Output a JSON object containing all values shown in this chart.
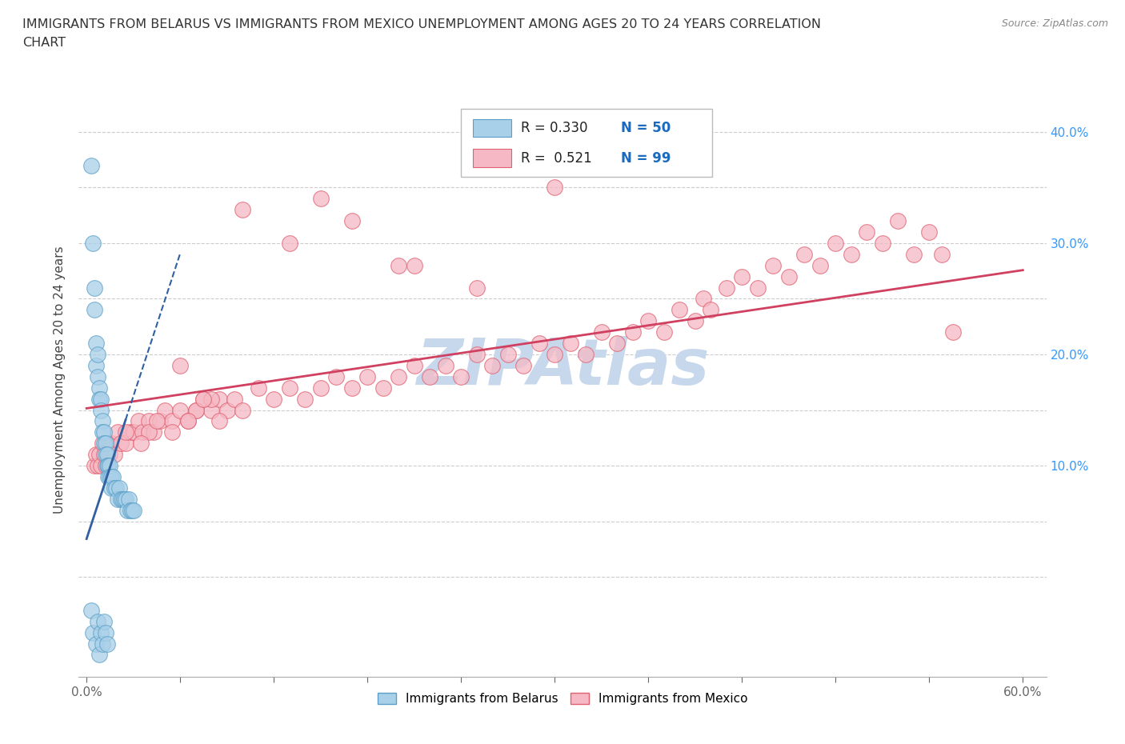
{
  "title_line1": "IMMIGRANTS FROM BELARUS VS IMMIGRANTS FROM MEXICO UNEMPLOYMENT AMONG AGES 20 TO 24 YEARS CORRELATION",
  "title_line2": "CHART",
  "source": "Source: ZipAtlas.com",
  "ylabel": "Unemployment Among Ages 20 to 24 years",
  "xlim": [
    -0.005,
    0.615
  ],
  "ylim": [
    -0.09,
    0.445
  ],
  "x_tick_positions": [
    0.0,
    0.06,
    0.12,
    0.18,
    0.24,
    0.3,
    0.36,
    0.42,
    0.48,
    0.54,
    0.6
  ],
  "x_tick_labels": [
    "0.0%",
    "",
    "",
    "",
    "",
    "",
    "",
    "",
    "",
    "",
    "60.0%"
  ],
  "y_tick_positions": [
    0.0,
    0.05,
    0.1,
    0.15,
    0.2,
    0.25,
    0.3,
    0.35,
    0.4
  ],
  "y_tick_labels_right": [
    "",
    "",
    "10.0%",
    "",
    "20.0%",
    "",
    "30.0%",
    "",
    "40.0%"
  ],
  "belarus_color": "#a8d0e8",
  "mexico_color": "#f5b8c4",
  "belarus_edge_color": "#5b9fc8",
  "mexico_edge_color": "#e06070",
  "belarus_trend_color": "#3060a0",
  "mexico_trend_color": "#d04060",
  "grid_color": "#cccccc",
  "belarus_R": 0.33,
  "belarus_N": 50,
  "mexico_R": 0.521,
  "mexico_N": 99,
  "watermark": "ZIPAtlas",
  "watermark_color": "#c8d8ec",
  "background_color": "#ffffff",
  "legend_R_color": "#1a6bbf",
  "legend_N_color": "#1a6bbf",
  "belarus_x": [
    0.003,
    0.004,
    0.005,
    0.005,
    0.006,
    0.006,
    0.007,
    0.007,
    0.008,
    0.008,
    0.009,
    0.009,
    0.01,
    0.01,
    0.011,
    0.011,
    0.012,
    0.012,
    0.013,
    0.013,
    0.014,
    0.014,
    0.015,
    0.015,
    0.016,
    0.016,
    0.017,
    0.018,
    0.019,
    0.02,
    0.021,
    0.022,
    0.023,
    0.024,
    0.025,
    0.026,
    0.027,
    0.028,
    0.029,
    0.03,
    0.003,
    0.004,
    0.006,
    0.007,
    0.008,
    0.009,
    0.01,
    0.011,
    0.012,
    0.013
  ],
  "belarus_y": [
    0.37,
    0.3,
    0.26,
    0.24,
    0.21,
    0.19,
    0.2,
    0.18,
    0.17,
    0.16,
    0.16,
    0.15,
    0.14,
    0.13,
    0.13,
    0.12,
    0.12,
    0.11,
    0.11,
    0.1,
    0.1,
    0.09,
    0.1,
    0.09,
    0.09,
    0.08,
    0.09,
    0.08,
    0.08,
    0.07,
    0.08,
    0.07,
    0.07,
    0.07,
    0.07,
    0.06,
    0.07,
    0.06,
    0.06,
    0.06,
    -0.03,
    -0.05,
    -0.06,
    -0.04,
    -0.07,
    -0.05,
    -0.06,
    -0.04,
    -0.05,
    -0.06
  ],
  "mexico_x": [
    0.005,
    0.006,
    0.007,
    0.008,
    0.009,
    0.01,
    0.011,
    0.012,
    0.013,
    0.015,
    0.016,
    0.018,
    0.02,
    0.022,
    0.025,
    0.028,
    0.03,
    0.033,
    0.036,
    0.04,
    0.043,
    0.047,
    0.05,
    0.055,
    0.06,
    0.065,
    0.07,
    0.075,
    0.08,
    0.085,
    0.09,
    0.095,
    0.1,
    0.11,
    0.12,
    0.13,
    0.14,
    0.15,
    0.16,
    0.17,
    0.18,
    0.19,
    0.2,
    0.21,
    0.22,
    0.23,
    0.24,
    0.25,
    0.26,
    0.27,
    0.28,
    0.29,
    0.3,
    0.31,
    0.32,
    0.33,
    0.34,
    0.35,
    0.36,
    0.37,
    0.38,
    0.39,
    0.395,
    0.4,
    0.41,
    0.42,
    0.43,
    0.44,
    0.45,
    0.46,
    0.47,
    0.48,
    0.49,
    0.5,
    0.51,
    0.52,
    0.53,
    0.54,
    0.548,
    0.555,
    0.1,
    0.15,
    0.2,
    0.25,
    0.3,
    0.13,
    0.17,
    0.21,
    0.06,
    0.08,
    0.04,
    0.045,
    0.035,
    0.025,
    0.07,
    0.055,
    0.065,
    0.075,
    0.085
  ],
  "mexico_y": [
    0.1,
    0.11,
    0.1,
    0.11,
    0.1,
    0.12,
    0.11,
    0.1,
    0.12,
    0.11,
    0.12,
    0.11,
    0.13,
    0.12,
    0.12,
    0.13,
    0.13,
    0.14,
    0.13,
    0.14,
    0.13,
    0.14,
    0.15,
    0.14,
    0.15,
    0.14,
    0.15,
    0.16,
    0.15,
    0.16,
    0.15,
    0.16,
    0.15,
    0.17,
    0.16,
    0.17,
    0.16,
    0.17,
    0.18,
    0.17,
    0.18,
    0.17,
    0.18,
    0.19,
    0.18,
    0.19,
    0.18,
    0.2,
    0.19,
    0.2,
    0.19,
    0.21,
    0.2,
    0.21,
    0.2,
    0.22,
    0.21,
    0.22,
    0.23,
    0.22,
    0.24,
    0.23,
    0.25,
    0.24,
    0.26,
    0.27,
    0.26,
    0.28,
    0.27,
    0.29,
    0.28,
    0.3,
    0.29,
    0.31,
    0.3,
    0.32,
    0.29,
    0.31,
    0.29,
    0.22,
    0.33,
    0.34,
    0.28,
    0.26,
    0.35,
    0.3,
    0.32,
    0.28,
    0.19,
    0.16,
    0.13,
    0.14,
    0.12,
    0.13,
    0.15,
    0.13,
    0.14,
    0.16,
    0.14
  ]
}
